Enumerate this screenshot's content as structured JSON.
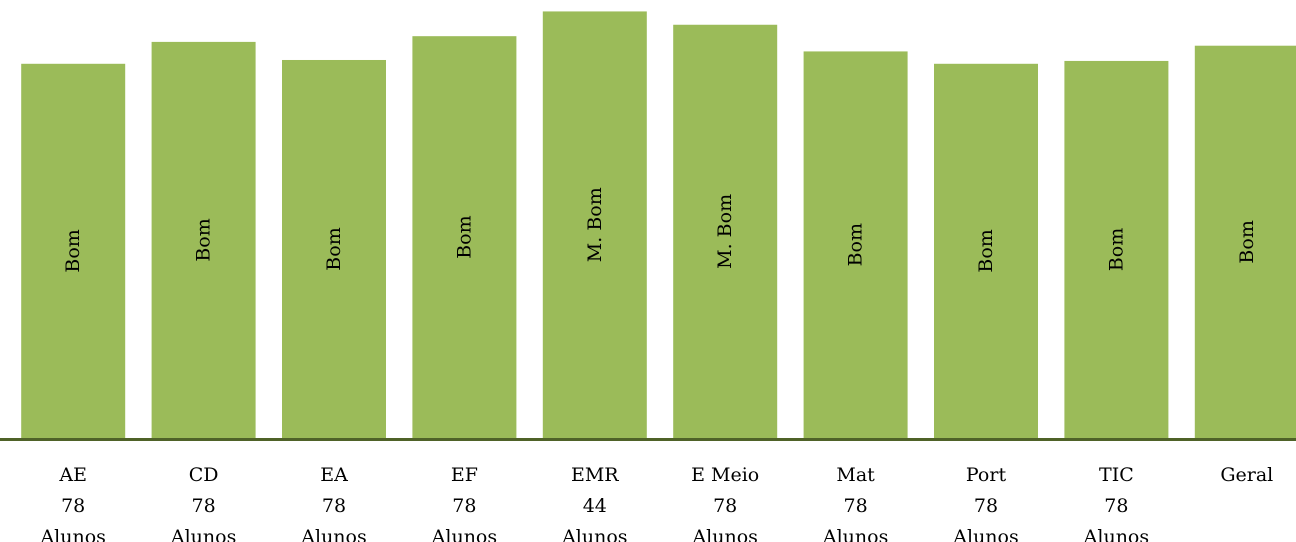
{
  "chart_data": {
    "type": "bar",
    "categories": [
      {
        "name": "AE",
        "count": "78",
        "unit": "Alunos"
      },
      {
        "name": "CD",
        "count": "78",
        "unit": "Alunos"
      },
      {
        "name": "EA",
        "count": "78",
        "unit": "Alunos"
      },
      {
        "name": "EF",
        "count": "78",
        "unit": "Alunos"
      },
      {
        "name": "EMR",
        "count": "44",
        "unit": "Alunos"
      },
      {
        "name": "E Meio",
        "count": "78",
        "unit": "Alunos"
      },
      {
        "name": "Mat",
        "count": "78",
        "unit": "Alunos"
      },
      {
        "name": "Port",
        "count": "78",
        "unit": "Alunos"
      },
      {
        "name": "TIC",
        "count": "78",
        "unit": "Alunos"
      },
      {
        "name": "Geral",
        "count": "",
        "unit": ""
      }
    ],
    "values": [
      3.93,
      4.16,
      3.97,
      4.22,
      4.48,
      4.34,
      4.06,
      3.93,
      3.96,
      4.12
    ],
    "data_labels": [
      "Bom",
      "Bom",
      "Bom",
      "Bom",
      "M. Bom",
      "M. Bom",
      "Bom",
      "Bom",
      "Bom",
      "Bom"
    ],
    "ylim": [
      0,
      4.6
    ],
    "title": "",
    "xlabel": "",
    "ylabel": "",
    "grid": false,
    "legend": "none",
    "colors": {
      "bar": "#9bbb59",
      "axis": "#4f6228"
    }
  }
}
